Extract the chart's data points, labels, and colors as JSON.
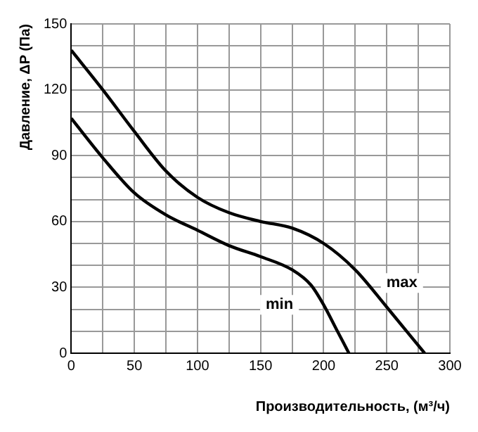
{
  "chart_data": {
    "type": "line",
    "xlabel": "Производительность, (м³/ч)",
    "ylabel": "Давление, ΔP (Па)",
    "xlim": [
      0,
      300
    ],
    "xticks": [
      0,
      {
        "value": 25,
        "label": null
      },
      50,
      {
        "value": 75,
        "label": null
      },
      100,
      {
        "value": 125,
        "label": null
      },
      150,
      {
        "value": 175,
        "label": null
      },
      200,
      {
        "value": 225,
        "label": null
      },
      250,
      {
        "value": 275,
        "label": null
      },
      300
    ],
    "ylim": [
      0,
      150
    ],
    "yticks": [
      0,
      {
        "value": 10,
        "label": null
      },
      {
        "value": 20,
        "label": null
      },
      30,
      {
        "value": 40,
        "label": null
      },
      {
        "value": 50,
        "label": null
      },
      60,
      {
        "value": 70,
        "label": null
      },
      {
        "value": 80,
        "label": null
      },
      90,
      {
        "value": 100,
        "label": null
      },
      {
        "value": 110,
        "label": null
      },
      120,
      {
        "value": 130,
        "label": null
      },
      {
        "value": 140,
        "label": null
      },
      150
    ],
    "grid": true,
    "legend": false,
    "marker": "none",
    "line_style": "solid",
    "series": [
      {
        "color": "#000000",
        "x": [
          0,
          25,
          50,
          75,
          100,
          125,
          150,
          175,
          200,
          225,
          250,
          280
        ],
        "values": [
          138,
          120,
          101,
          83,
          71,
          64,
          60,
          57,
          50,
          38,
          21,
          0
        ]
      },
      {
        "color": "#000000",
        "x": [
          0,
          25,
          50,
          75,
          100,
          125,
          150,
          175,
          190,
          200,
          210,
          220
        ],
        "values": [
          107,
          89,
          73,
          63,
          56,
          49,
          44,
          38,
          31,
          22,
          11,
          0
        ]
      }
    ],
    "annotations": [
      {
        "text": "min",
        "x": 165,
        "y": 22
      },
      {
        "text": "max",
        "x": 262,
        "y": 32
      }
    ]
  }
}
